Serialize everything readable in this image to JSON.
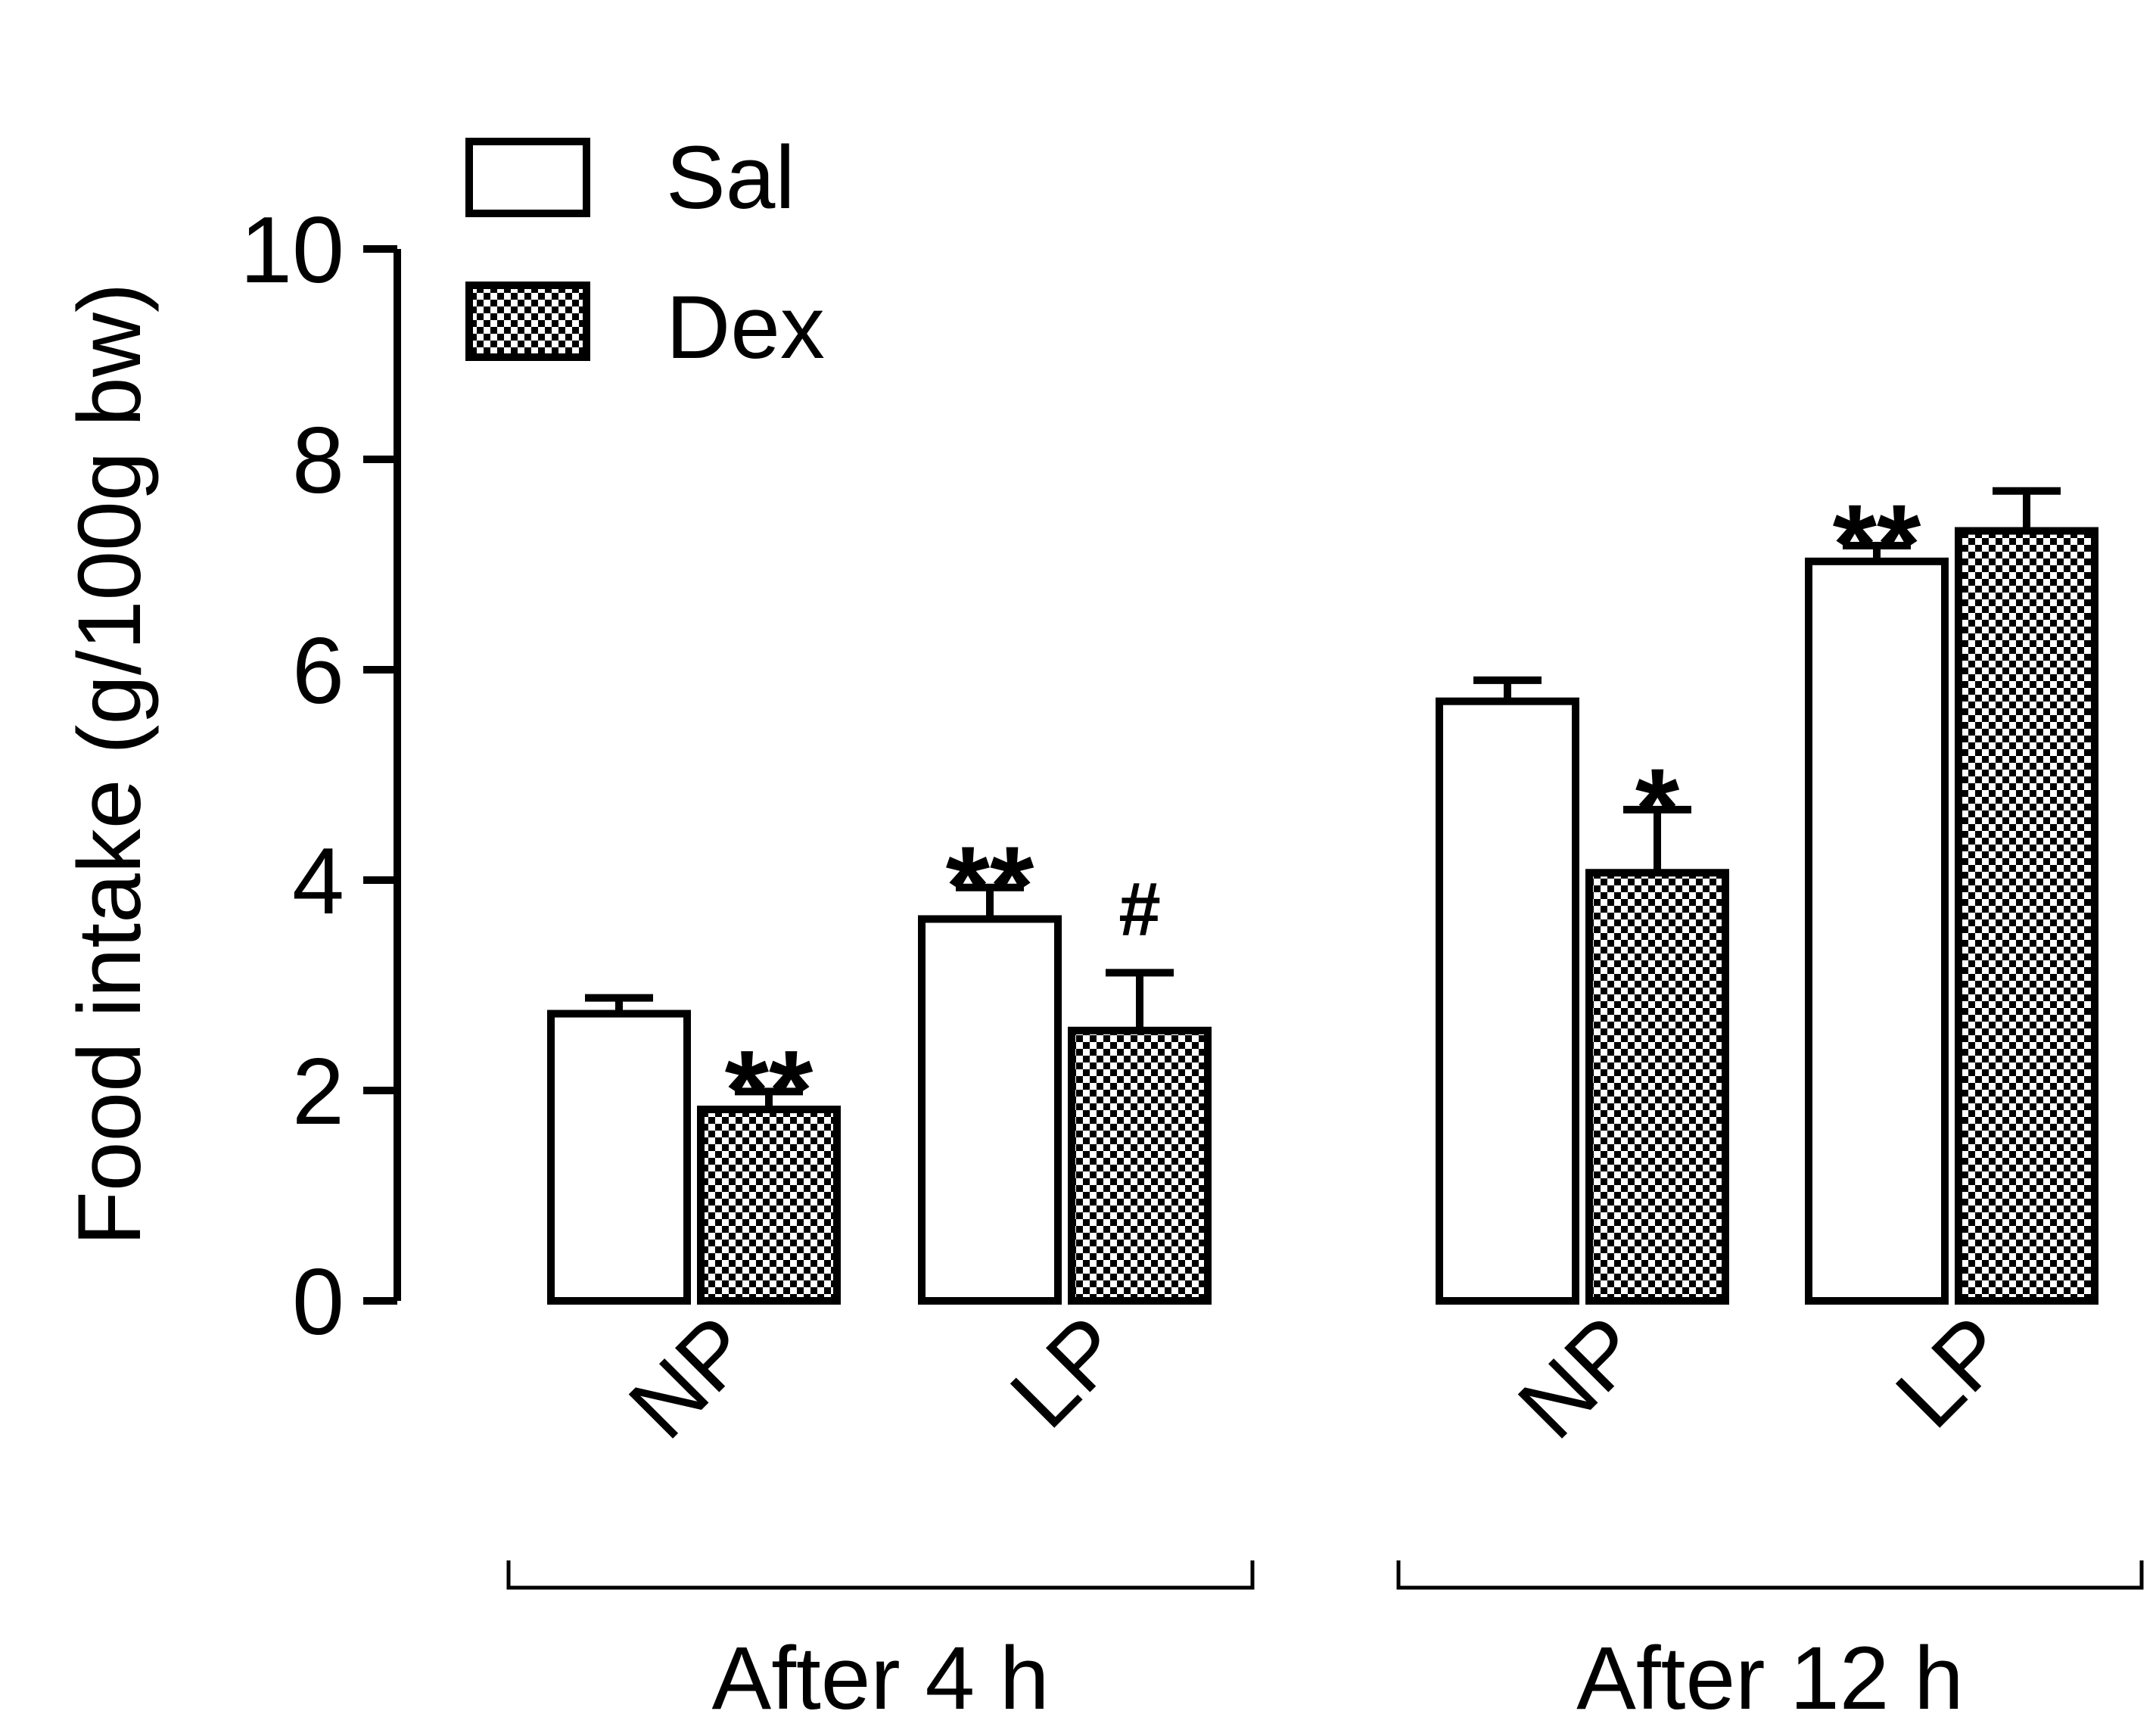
{
  "chart_data": {
    "type": "bar",
    "ylabel": "Food intake (g/100g bw)",
    "ylim": [
      0,
      10
    ],
    "yticks": [
      0,
      2,
      4,
      6,
      8,
      10
    ],
    "legend": {
      "position": "top-left",
      "entries": [
        {
          "name": "Sal",
          "pattern": "open"
        },
        {
          "name": "Dex",
          "pattern": "checkered"
        }
      ]
    },
    "groups": [
      {
        "label": "After 4 h",
        "categories": [
          "NP",
          "LP"
        ]
      },
      {
        "label": "After 12 h",
        "categories": [
          "NP",
          "LP"
        ]
      }
    ],
    "series": [
      {
        "name": "Sal",
        "values": [
          2.73,
          3.63,
          5.7,
          7.03
        ],
        "errors": [
          0.15,
          0.3,
          0.2,
          0.15
        ]
      },
      {
        "name": "Dex",
        "values": [
          1.82,
          2.57,
          4.07,
          7.32
        ],
        "errors": [
          0.17,
          0.55,
          0.6,
          0.38
        ]
      }
    ],
    "annotations": [
      {
        "group": 0,
        "category": 0,
        "series": "Dex",
        "text": "**"
      },
      {
        "group": 0,
        "category": 1,
        "series": "Sal",
        "text": "**"
      },
      {
        "group": 0,
        "category": 1,
        "series": "Dex",
        "text": "#"
      },
      {
        "group": 1,
        "category": 0,
        "series": "Dex",
        "text": "*"
      },
      {
        "group": 1,
        "category": 1,
        "series": "Sal",
        "text": "**"
      }
    ],
    "colors": {
      "outline": "#000000",
      "fill_open": "#ffffff",
      "pattern": "#000000"
    }
  }
}
